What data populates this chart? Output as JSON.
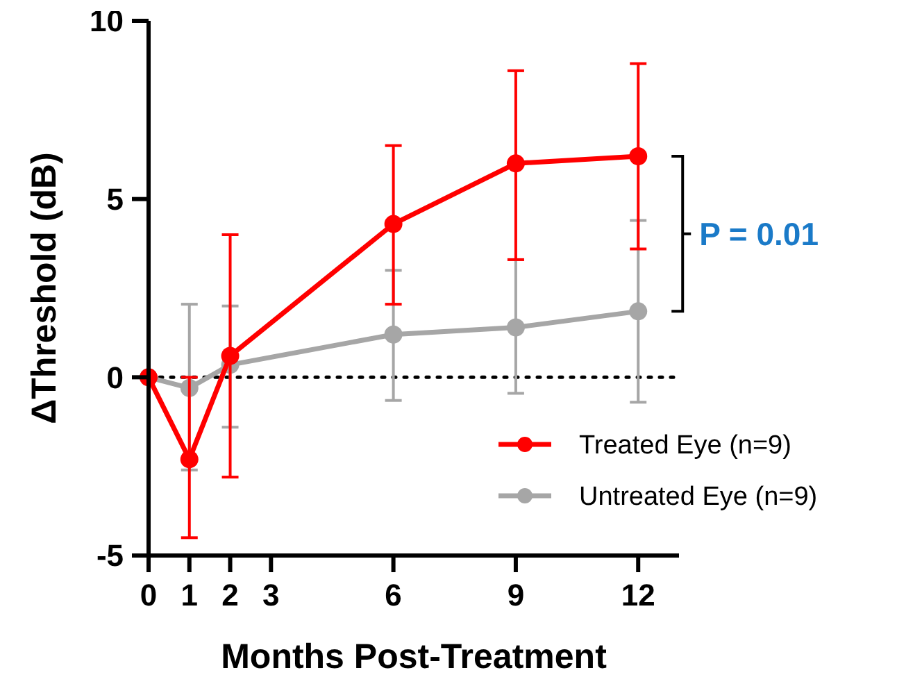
{
  "chart_data": {
    "type": "line",
    "xlabel": "Months Post-Treatment",
    "ylabel": "ΔThreshold (dB)",
    "x": [
      0,
      1,
      2,
      6,
      9,
      12
    ],
    "xlim": [
      0,
      13
    ],
    "xticks": [
      0,
      1,
      2,
      3,
      6,
      9,
      12
    ],
    "ylim": [
      -5,
      10
    ],
    "yticks": [
      -5,
      0,
      5,
      10
    ],
    "grid": false,
    "marker": "circle",
    "line_style": "solid",
    "legend": "bottom right",
    "series": [
      {
        "name": "Treated Eye (n=9)",
        "color": "#ff0000",
        "values": [
          0,
          -2.3,
          0.6,
          4.3,
          6.0,
          6.2
        ],
        "errors": [
          null,
          [
            -4.5,
            0
          ],
          [
            -2.8,
            4.0
          ],
          [
            2.05,
            6.5
          ],
          [
            3.3,
            8.6
          ],
          [
            3.6,
            8.8
          ]
        ]
      },
      {
        "name": "Untreated Eye (n=9)",
        "color": "#a6a6a6",
        "values": [
          0,
          -0.3,
          0.35,
          1.2,
          1.4,
          1.85
        ],
        "errors": [
          null,
          [
            -2.6,
            2.05
          ],
          [
            -1.4,
            2.0
          ],
          [
            -0.65,
            3.0
          ],
          [
            -0.45,
            3.3
          ],
          [
            -0.7,
            4.4
          ]
        ]
      }
    ],
    "ref_lines": [
      {
        "axis": "y",
        "value": 0,
        "line_style": "dotted",
        "color": "#000000"
      }
    ],
    "annotations": [
      "P = 0.01"
    ]
  }
}
